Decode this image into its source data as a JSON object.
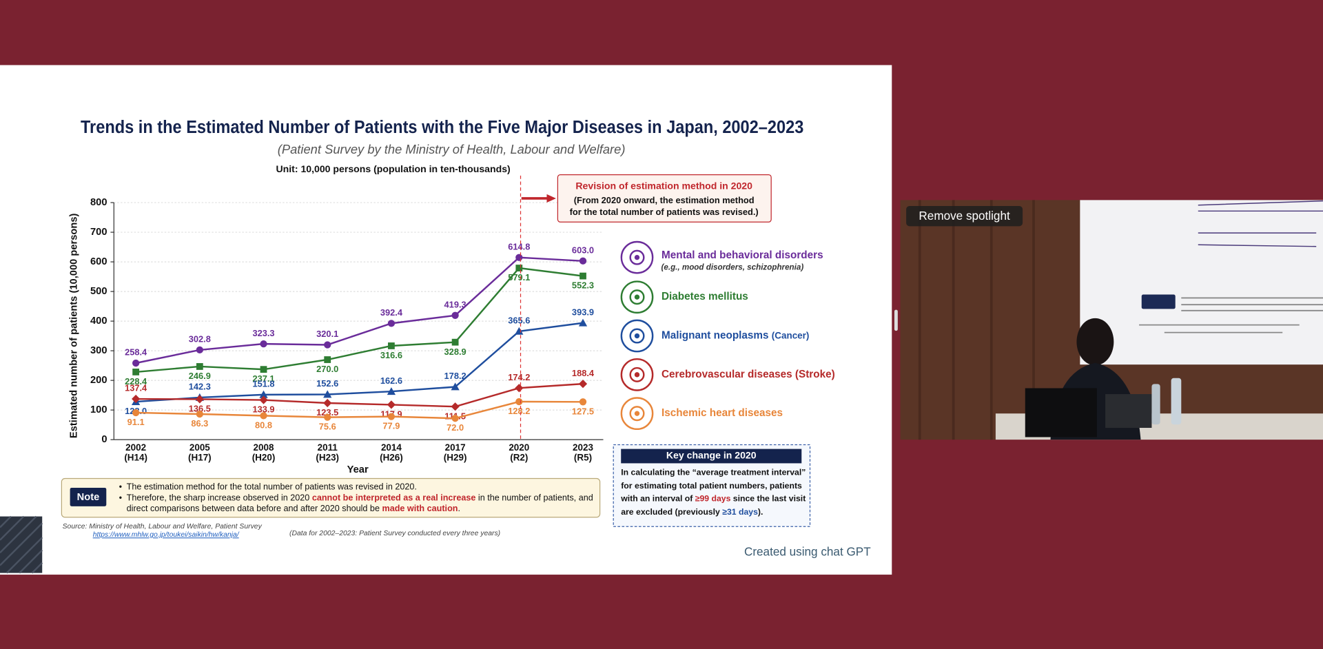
{
  "chart_data": {
    "type": "line",
    "title": "Trends in the Estimated Number of Patients with the Five Major Diseases in Japan, 2002–2023",
    "subtitle": "(Patient Survey by the Ministry of Health, Labour and Welfare)",
    "unit": "Unit: 10,000 persons (population in ten-thousands)",
    "y_label": "Estimated number of patients (10,000 persons)",
    "x_label": "Year",
    "categories": [
      "2002",
      "2005",
      "2008",
      "2011",
      "2014",
      "2017",
      "2020",
      "2023"
    ],
    "category_sublabels": [
      "(H14)",
      "(H17)",
      "(H20)",
      "(H23)",
      "(H26)",
      "(H29)",
      "(R2)",
      "(R5)"
    ],
    "ylim": [
      0,
      800
    ],
    "yticks": [
      0,
      100,
      200,
      300,
      400,
      500,
      600,
      700,
      800
    ],
    "grid": true,
    "series": [
      {
        "name": "Mental and behavioral disorders",
        "note": "(e.g., mood disorders, schizophrenia)",
        "color": "#6a2c9a",
        "marker": "circle",
        "values": [
          258.4,
          302.8,
          323.3,
          320.1,
          392.4,
          419.3,
          614.8,
          603.0
        ],
        "value_labels": [
          "258.4",
          "302.8",
          "323.3",
          "320.1",
          "392.4",
          "419.3",
          "614.8",
          "603.0"
        ]
      },
      {
        "name": "Diabetes mellitus",
        "color": "#2e7d32",
        "marker": "square",
        "values": [
          228.4,
          246.9,
          237.1,
          270.0,
          316.6,
          328.9,
          579.1,
          552.3
        ],
        "value_labels": [
          "228.4",
          "246.9",
          "237.1",
          "270.0",
          "316.6",
          "328.9",
          "579.1",
          "552.3"
        ]
      },
      {
        "name": "Malignant neoplasms",
        "note": "(Cancer)",
        "color": "#1f4e9e",
        "marker": "triangle",
        "values": [
          128.0,
          142.3,
          151.8,
          152.6,
          162.6,
          178.2,
          365.6,
          393.9
        ],
        "value_labels": [
          "128.0",
          "142.3",
          "151.8",
          "152.6",
          "162.6",
          "178.2",
          "365.6",
          "393.9"
        ]
      },
      {
        "name": "Cerebrovascular diseases",
        "note": "(Stroke)",
        "color": "#b52a2a",
        "marker": "diamond",
        "values": [
          137.4,
          136.5,
          133.9,
          123.5,
          117.9,
          111.5,
          174.2,
          188.4
        ],
        "value_labels": [
          "137.4",
          "136.5",
          "133.9",
          "123.5",
          "117.9",
          "111.5",
          "174.2",
          "188.4"
        ]
      },
      {
        "name": "Ischemic heart diseases",
        "color": "#e8863a",
        "marker": "circle",
        "values": [
          91.1,
          86.3,
          80.8,
          75.6,
          77.9,
          72.0,
          128.2,
          127.5
        ],
        "value_labels": [
          "91.1",
          "86.3",
          "80.8",
          "75.6",
          "77.9",
          "72.0",
          "128.2",
          "127.5"
        ]
      }
    ],
    "annotation": {
      "title": "Revision of estimation method in 2020",
      "lines": [
        "(From 2020 onward, the estimation method",
        "for the total number of patients was revised.)"
      ]
    }
  },
  "note": {
    "label": "Note",
    "bullets": [
      [
        "The estimation method for the total number of patients was revised in 2020."
      ],
      [
        "Therefore, the sharp increase observed in 2020 ",
        "cannot be interpreted as a real increase",
        " in the number of patients, and direct comparisons between data before and after 2020 should be ",
        "made with caution",
        "."
      ]
    ]
  },
  "key_change": {
    "title": "Key change in 2020",
    "parts": [
      "In calculating the “average treatment interval” for estimating total patient numbers, patients with an interval of ",
      "≥99 days",
      " since the last visit are excluded (previously ",
      "≥31 days",
      ")."
    ]
  },
  "source": {
    "text": "Source: Ministry of Health, Labour and Welfare, Patient Survey",
    "url": "https://www.mhlw.go.jp/toukei/saikin/hw/kanja/",
    "coverage": "(Data for 2002–2023: Patient Survey conducted every three years)"
  },
  "footer": "Created using chat GPT",
  "video": {
    "button": "Remove spotlight"
  }
}
